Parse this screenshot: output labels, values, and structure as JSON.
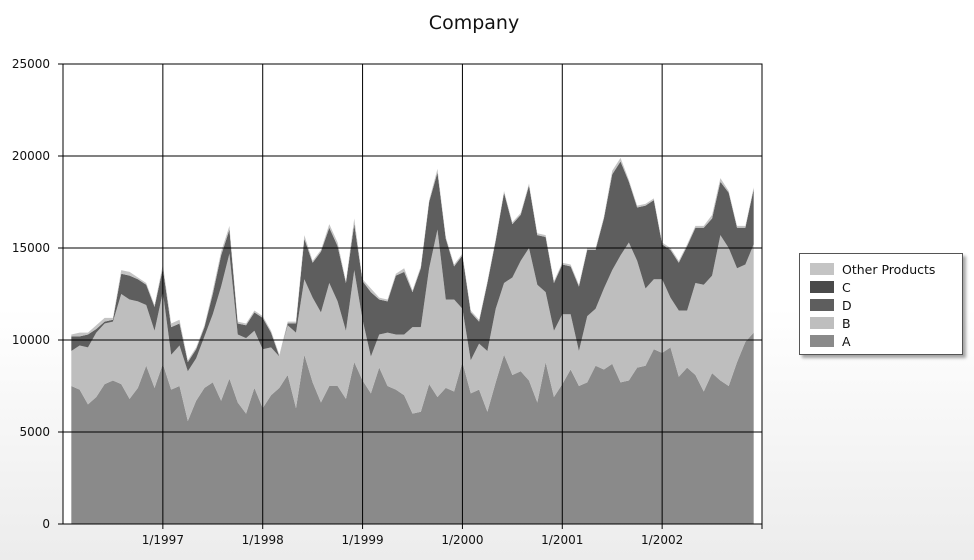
{
  "chart_data": {
    "type": "area",
    "stacked": true,
    "title": "Company",
    "xlabel": "",
    "ylabel": "",
    "ylim": [
      0,
      25000
    ],
    "yticks": [
      0,
      5000,
      10000,
      15000,
      20000,
      25000
    ],
    "ytick_labels": [
      "0",
      "5000",
      "10000",
      "15000",
      "20000",
      "25000"
    ],
    "xlim": [
      "1996-01",
      "2003-01"
    ],
    "xticks": [
      "1997-01",
      "1998-01",
      "1999-01",
      "2000-01",
      "2001-01",
      "2002-01"
    ],
    "xtick_labels": [
      "1/1997",
      "1/1998",
      "1/1999",
      "1/2000",
      "1/2001",
      "1/2002"
    ],
    "grid": true,
    "legend_position": "right",
    "x": [
      "1996-02",
      "1996-03",
      "1996-04",
      "1996-05",
      "1996-06",
      "1996-07",
      "1996-08",
      "1996-09",
      "1996-10",
      "1996-11",
      "1996-12",
      "1997-01",
      "1997-02",
      "1997-03",
      "1997-04",
      "1997-05",
      "1997-06",
      "1997-07",
      "1997-08",
      "1997-09",
      "1997-10",
      "1997-11",
      "1997-12",
      "1998-01",
      "1998-02",
      "1998-03",
      "1998-04",
      "1998-05",
      "1998-06",
      "1998-07",
      "1998-08",
      "1998-09",
      "1998-10",
      "1998-11",
      "1998-12",
      "1999-01",
      "1999-02",
      "1999-03",
      "1999-04",
      "1999-05",
      "1999-06",
      "1999-07",
      "1999-08",
      "1999-09",
      "1999-10",
      "1999-11",
      "1999-12",
      "2000-01",
      "2000-02",
      "2000-03",
      "2000-04",
      "2000-05",
      "2000-06",
      "2000-07",
      "2000-08",
      "2000-09",
      "2000-10",
      "2000-11",
      "2000-12",
      "2001-01",
      "2001-02",
      "2001-03",
      "2001-04",
      "2001-05",
      "2001-06",
      "2001-07",
      "2001-08",
      "2001-09",
      "2001-10",
      "2001-11",
      "2001-12",
      "2002-01",
      "2002-02",
      "2002-03",
      "2002-04",
      "2002-05",
      "2002-06",
      "2002-07",
      "2002-08",
      "2002-09",
      "2002-10",
      "2002-11",
      "2002-12"
    ],
    "series": [
      {
        "name": "A",
        "color": "#8a8a8a",
        "values": [
          7500,
          7300,
          6500,
          6900,
          7600,
          7800,
          7600,
          6800,
          7400,
          8600,
          7400,
          8700,
          7300,
          7500,
          5600,
          6700,
          7400,
          7700,
          6700,
          7900,
          6600,
          6000,
          7400,
          6300,
          7000,
          7400,
          8100,
          6300,
          9200,
          7700,
          6600,
          7500,
          7500,
          6800,
          8800,
          7800,
          7100,
          8500,
          7500,
          7300,
          7000,
          6000,
          6100,
          7600,
          6900,
          7400,
          7200,
          8800,
          7100,
          7300,
          6100,
          7700,
          9200,
          8100,
          8300,
          7800,
          6600,
          8800,
          6900,
          7600,
          8400,
          7500,
          7700,
          8600,
          8400,
          8700,
          7700,
          7800,
          8500,
          8600,
          9500,
          9300,
          9600,
          8000,
          8500,
          8100,
          7200,
          8200,
          7800,
          7500,
          8800,
          9900,
          10400
        ]
      },
      {
        "name": "B",
        "color": "#bebebe",
        "values": [
          1900,
          2400,
          3100,
          3500,
          3300,
          3200,
          4900,
          5400,
          4700,
          3300,
          3100,
          3900,
          1900,
          2200,
          2700,
          2300,
          2800,
          3700,
          6200,
          6800,
          3700,
          4100,
          3100,
          3200,
          2600,
          1700,
          2700,
          4100,
          4100,
          4600,
          4900,
          5600,
          4600,
          3700,
          5000,
          3300,
          2000,
          1800,
          2900,
          3000,
          3300,
          4700,
          4600,
          6300,
          9100,
          4800,
          5000,
          2900,
          1800,
          2500,
          3300,
          4000,
          3900,
          5300,
          6000,
          7200,
          6400,
          3800,
          3600,
          3800,
          3000,
          1900,
          3600,
          3100,
          4400,
          5100,
          6900,
          7500,
          5800,
          4200,
          3800,
          4000,
          2700,
          3600,
          3100,
          5000,
          5800,
          5300,
          7900,
          7500,
          5100,
          4200,
          4800
        ]
      },
      {
        "name": "D",
        "color": "#5e5e5e",
        "values": [
          800,
          500,
          700,
          200,
          100,
          100,
          1100,
          1300,
          1200,
          1100,
          1300,
          1300,
          1500,
          1200,
          500,
          500,
          500,
          1100,
          1700,
          1300,
          600,
          700,
          1000,
          1700,
          800,
          0,
          100,
          500,
          2200,
          1900,
          3300,
          3000,
          3000,
          2600,
          2500,
          2100,
          3500,
          1900,
          1700,
          3200,
          3400,
          1900,
          3200,
          3600,
          3100,
          3300,
          1800,
          2900,
          2600,
          1200,
          3700,
          3700,
          4900,
          2900,
          2500,
          3400,
          2700,
          3000,
          2600,
          2700,
          2600,
          3500,
          3600,
          3200,
          3800,
          5200,
          5100,
          3300,
          2900,
          4500,
          4300,
          1900,
          2600,
          2600,
          3500,
          3000,
          3100,
          3100,
          2900,
          3000,
          2200,
          2000,
          3000
        ]
      },
      {
        "name": "C",
        "color": "#4a4a4a",
        "values": [
          0,
          0,
          0,
          0,
          0,
          0,
          0,
          0,
          0,
          0,
          0,
          0,
          0,
          0,
          0,
          0,
          0,
          0,
          0,
          0,
          0,
          0,
          0,
          0,
          0,
          0,
          0,
          0,
          0,
          0,
          0,
          0,
          0,
          0,
          0,
          0,
          0,
          0,
          0,
          0,
          0,
          0,
          0,
          0,
          0,
          0,
          0,
          0,
          0,
          0,
          0,
          0,
          0,
          0,
          0,
          0,
          0,
          0,
          0,
          0,
          0,
          0,
          0,
          0,
          0,
          0,
          0,
          0,
          0,
          0,
          0,
          0,
          0,
          0,
          0,
          0,
          0,
          0,
          0,
          0,
          0,
          0,
          0
        ]
      },
      {
        "name": "Other Products",
        "color": "#c4c4c4",
        "values": [
          100,
          200,
          100,
          200,
          200,
          100,
          200,
          200,
          100,
          100,
          100,
          200,
          200,
          200,
          100,
          100,
          100,
          200,
          200,
          200,
          100,
          100,
          100,
          100,
          100,
          100,
          100,
          100,
          200,
          100,
          100,
          200,
          200,
          100,
          300,
          100,
          200,
          100,
          100,
          100,
          200,
          100,
          100,
          100,
          200,
          100,
          100,
          100,
          100,
          100,
          100,
          100,
          100,
          100,
          100,
          100,
          100,
          100,
          100,
          100,
          100,
          100,
          100,
          100,
          100,
          200,
          200,
          100,
          100,
          100,
          100,
          100,
          100,
          100,
          100,
          100,
          100,
          200,
          200,
          100,
          100,
          100,
          100
        ]
      }
    ]
  }
}
